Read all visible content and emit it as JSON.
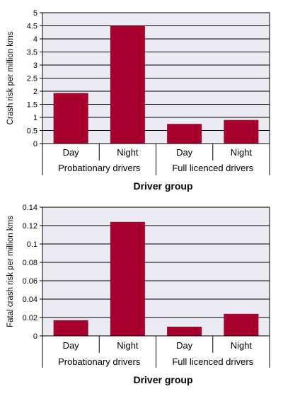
{
  "colors": {
    "bar": "#a8002e",
    "plot_bg": "#ebebf3",
    "grid": "#000000"
  },
  "chart_data": [
    {
      "type": "bar",
      "ylabel": "Crash risk per million kms",
      "xlabel": "Driver group",
      "ylim": [
        0,
        5
      ],
      "yticks": [
        0,
        0.5,
        1,
        1.5,
        2,
        2.5,
        3,
        3.5,
        4,
        4.5,
        5
      ],
      "ytick_labels": [
        "0",
        "0.5",
        "1",
        "1.5",
        "2",
        "2.5",
        "3",
        "3.5",
        "4",
        "4.5",
        "5"
      ],
      "categories": [
        "Day",
        "Night",
        "Day",
        "Night"
      ],
      "groups": [
        "Probationary drivers",
        "Full licenced drivers"
      ],
      "values": [
        1.93,
        4.5,
        0.75,
        0.9
      ],
      "grid": true
    },
    {
      "type": "bar",
      "ylabel": "Fatal crash risk per million kms",
      "xlabel": "Driver group",
      "ylim": [
        0,
        0.14
      ],
      "yticks": [
        0,
        0.02,
        0.04,
        0.06,
        0.08,
        0.1,
        0.12,
        0.14
      ],
      "ytick_labels": [
        "0",
        "0.02",
        "0.04",
        "0.06",
        "0.08",
        "0.1",
        "0.12",
        "0.14"
      ],
      "categories": [
        "Day",
        "Night",
        "Day",
        "Night"
      ],
      "groups": [
        "Probationary drivers",
        "Full licenced drivers"
      ],
      "values": [
        0.017,
        0.124,
        0.01,
        0.024
      ],
      "grid": true
    }
  ]
}
